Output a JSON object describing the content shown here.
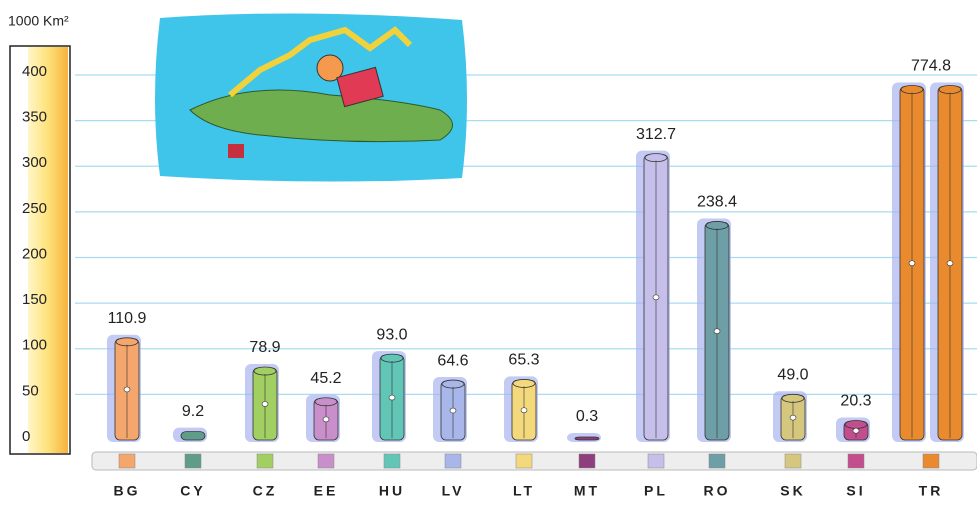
{
  "chart_data": {
    "type": "bar",
    "y_axis_label": "1000 Km²",
    "categories": [
      "BG",
      "CY",
      "CZ",
      "EE",
      "HU",
      "LV",
      "LT",
      "MT",
      "PL",
      "RO",
      "SK",
      "SI",
      "TR"
    ],
    "values": [
      110.9,
      9.2,
      78.9,
      45.2,
      93.0,
      64.6,
      65.3,
      0.3,
      312.7,
      238.4,
      49.0,
      20.3,
      774.8
    ],
    "value_labels": [
      "110.9",
      "9.2",
      "78.9",
      "45.2",
      "93.0",
      "64.6",
      "65.3",
      "0.3",
      "312.7",
      "238.4",
      "49.0",
      "20.3",
      "774.8"
    ],
    "colors": [
      "#f5a66c",
      "#5f9c8a",
      "#a2cf62",
      "#c98fcb",
      "#62c6b6",
      "#a9b6ea",
      "#f4d97c",
      "#8e3e7e",
      "#c6bfea",
      "#6e9ea6",
      "#d6c77e",
      "#c24e8e",
      "#e98a2e"
    ],
    "ylim": [
      0,
      400
    ],
    "yticks": [
      0,
      50,
      100,
      150,
      200,
      250,
      300,
      350,
      400
    ],
    "grid": true
  }
}
